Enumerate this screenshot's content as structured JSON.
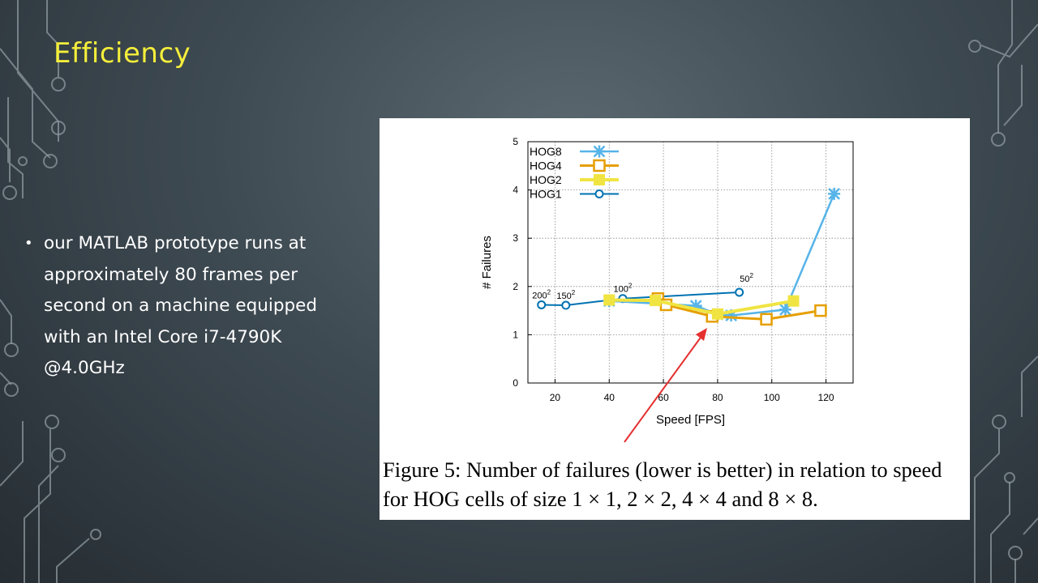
{
  "slide": {
    "title": "Efficiency",
    "bullet": "our MATLAB prototype runs at approximately 80 frames per second on a machine equipped with an Intel Core i7-4790K @4.0GHz"
  },
  "figure": {
    "caption": "Figure 5: Number of failures (lower is better) in relation to speed for HOG cells of size 1 × 1, 2 × 2, 4 × 4 and 8 × 8."
  },
  "colors": {
    "accent_title": "#f4ee3b",
    "hog8": "#56b4e9",
    "hog4": "#e69f00",
    "hog2": "#f0e442",
    "hog1": "#0072b2",
    "arrow": "#e53030"
  },
  "chart_data": {
    "type": "line",
    "xlabel": "Speed [FPS]",
    "ylabel": "# Failures",
    "xlim": [
      10,
      130
    ],
    "ylim": [
      0,
      5
    ],
    "xticks": [
      20,
      40,
      60,
      80,
      100,
      120
    ],
    "yticks": [
      0,
      1,
      2,
      3,
      4,
      5
    ],
    "grid": true,
    "legend_position": "top-left",
    "series": [
      {
        "name": "HOG8",
        "marker": "x",
        "color": "#56b4e9",
        "x": [
          40,
          72,
          80,
          85,
          105,
          123
        ],
        "y": [
          1.7,
          1.6,
          1.42,
          1.4,
          1.52,
          3.92
        ]
      },
      {
        "name": "HOG4",
        "marker": "square-open",
        "color": "#e69f00",
        "x": [
          58,
          61,
          78,
          98,
          118
        ],
        "y": [
          1.75,
          1.62,
          1.38,
          1.32,
          1.5
        ]
      },
      {
        "name": "HOG2",
        "marker": "square-filled",
        "color": "#f0e442",
        "x": [
          40,
          57,
          80,
          108
        ],
        "y": [
          1.72,
          1.71,
          1.43,
          1.7
        ]
      },
      {
        "name": "HOG1",
        "marker": "circle-open",
        "color": "#0072b2",
        "x": [
          15,
          24,
          45,
          88
        ],
        "y": [
          1.62,
          1.61,
          1.75,
          1.88
        ]
      }
    ],
    "point_labels": [
      {
        "text": "200",
        "sup": "2",
        "x": 15,
        "y": 1.62
      },
      {
        "text": "150",
        "sup": "2",
        "x": 24,
        "y": 1.61
      },
      {
        "text": "100",
        "sup": "2",
        "x": 45,
        "y": 1.75
      },
      {
        "text": "50",
        "sup": "2",
        "x": 88,
        "y": 1.88
      }
    ]
  }
}
